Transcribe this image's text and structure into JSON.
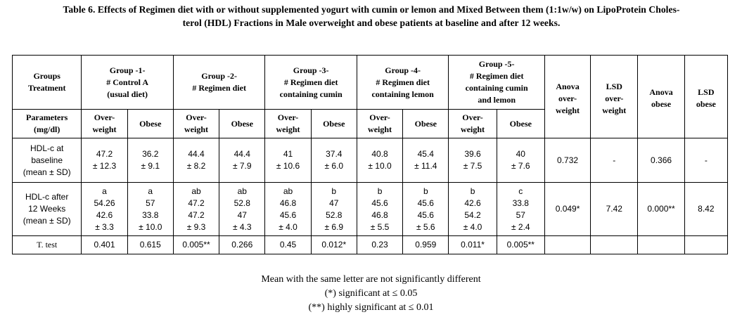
{
  "caption": "Table 6. Effects of Regimen diet with or without supplemented yogurt with cumin or lemon and Mixed Between them (1:1w/w) on LipoProtein Cholesterol (HDL) Fractions in Male overweight and obese patients at baseline and after 12 weeks.",
  "caption_line1": "Table 6. Effects of Regimen diet with or without supplemented yogurt with cumin or lemon and Mixed Between them (1:1w/w) on LipoProtein Choles-",
  "caption_line2": "terol (HDL) Fractions in Male overweight and obese patients at baseline and after 12 weeks.",
  "header": {
    "groups_treatment": "Groups\nTreatment",
    "group1": "Group -1-\n# Control A\n(usual diet)",
    "group2": "Group -2-\n# Regimen diet",
    "group3": "Group -3-\n# Regimen diet\ncontaining cumin",
    "group4": "Group -4-\n# Regimen diet\ncontaining lemon",
    "group5": "Group -5-\n# Regimen diet\ncontaining cumin\nand lemon",
    "anova_overweight": "Anova\nover-\nweight",
    "lsd_overweight": "LSD\nover-\nweight",
    "anova_obese": "Anova\nobese",
    "lsd_obese": "LSD\nobese",
    "parameters": "Parameters\n(mg/dl)",
    "overweight": "Over-\nweight",
    "obese": "Obese"
  },
  "rows": {
    "baseline": {
      "label": "HDL-c at\nbaseline\n(mean ± SD)",
      "values": [
        "47.2\n± 12.3",
        "36.2\n± 9.1",
        "44.4\n± 8.2",
        "44.4\n± 7.9",
        "41\n± 10.6",
        "37.4\n± 6.0",
        "40.8\n± 10.0",
        "45.4\n± 11.4",
        "39.6\n± 7.5",
        "40\n± 7.6"
      ],
      "anova_overweight": "0.732",
      "lsd_overweight": "-",
      "anova_obese": "0.366",
      "lsd_obese": "-"
    },
    "after": {
      "label": "HDL-c after\n12 Weeks\n(mean ± SD)",
      "values": [
        "a\n54.26\n42.6\n± 3.3",
        "a\n57\n33.8\n± 10.0",
        "ab\n47.2\n47.2\n± 9.3",
        "ab\n52.8\n47\n± 4.3",
        "ab\n46.8\n45.6\n± 4.0",
        "b\n47\n52.8\n± 6.9",
        "b\n45.6\n46.8\n± 5.5",
        "b\n45.6\n45.6\n± 5.6",
        "b\n42.6\n54.2\n± 4.0",
        "c\n33.8\n57\n± 2.4"
      ],
      "anova_overweight": "0.049*",
      "lsd_overweight": "7.42",
      "anova_obese": "0.000**",
      "lsd_obese": "8.42"
    },
    "ttest": {
      "label": "T. test",
      "values": [
        "0.401",
        "0.615",
        "0.005**",
        "0.266",
        "0.45",
        "0.012*",
        "0.23",
        "0.959",
        "0.011*",
        "0.005**"
      ]
    }
  },
  "footnotes": {
    "line1": "Mean with the same letter are not significantly different",
    "line2": "(*) significant at ≤ 0.05",
    "line3": "(**) highly significant at ≤ 0.01"
  }
}
